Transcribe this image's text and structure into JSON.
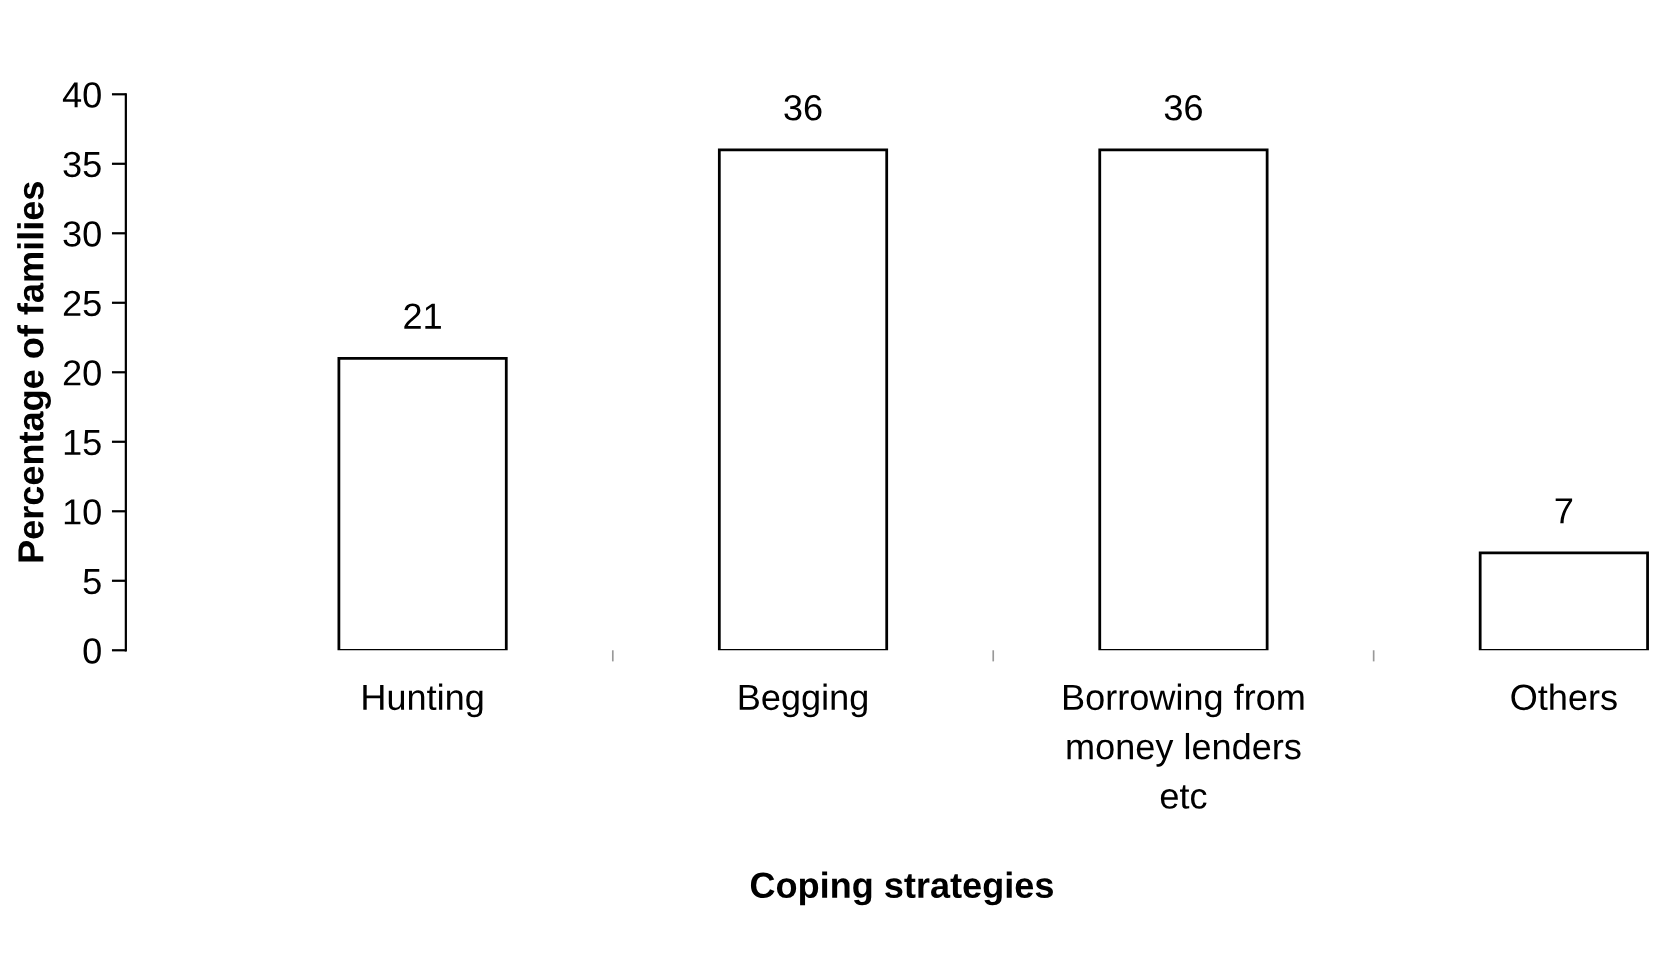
{
  "chart_data": {
    "type": "bar",
    "xlabel": "Coping strategies",
    "ylabel": "Percentage of families",
    "categories": [
      "Hunting",
      "Begging",
      "Borrowing from\nmoney lenders\netc",
      "Others"
    ],
    "values": [
      21,
      36,
      36,
      7
    ],
    "color": "#ffffff",
    "data_labels": true,
    "ylim": [
      0,
      40
    ],
    "yticks": [
      0,
      5,
      10,
      15,
      20,
      25,
      30,
      35,
      40
    ],
    "grid": false,
    "legend": false
  }
}
